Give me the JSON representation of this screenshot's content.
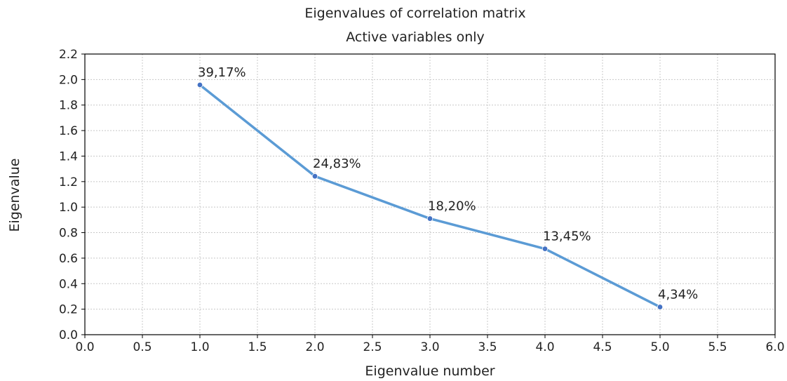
{
  "chart_data": {
    "type": "line",
    "title": "Eigenvalues of correlation matrix",
    "subtitle": "Active variables only",
    "xlabel": "Eigenvalue number",
    "ylabel": "Eigenvalue",
    "xlim": [
      0.0,
      6.0
    ],
    "ylim": [
      0.0,
      2.2
    ],
    "xticks": [
      "0.0",
      "0.5",
      "1.0",
      "1.5",
      "2.0",
      "2.5",
      "3.0",
      "3.5",
      "4.0",
      "4.5",
      "5.0",
      "5.5",
      "6.0"
    ],
    "yticks": [
      "0.0",
      "0.2",
      "0.4",
      "0.6",
      "0.8",
      "1.0",
      "1.2",
      "1.4",
      "1.6",
      "1.8",
      "2.0",
      "2.2"
    ],
    "grid": true,
    "series": [
      {
        "x": [
          1,
          2,
          3,
          4,
          5
        ],
        "y": [
          1.958,
          1.242,
          0.91,
          0.673,
          0.217
        ],
        "labels": [
          "39,17%",
          "24,83%",
          "18,20%",
          "13,45%",
          "4,34%"
        ],
        "color": "#5b9bd5",
        "marker_color": "#4472c4"
      }
    ]
  }
}
